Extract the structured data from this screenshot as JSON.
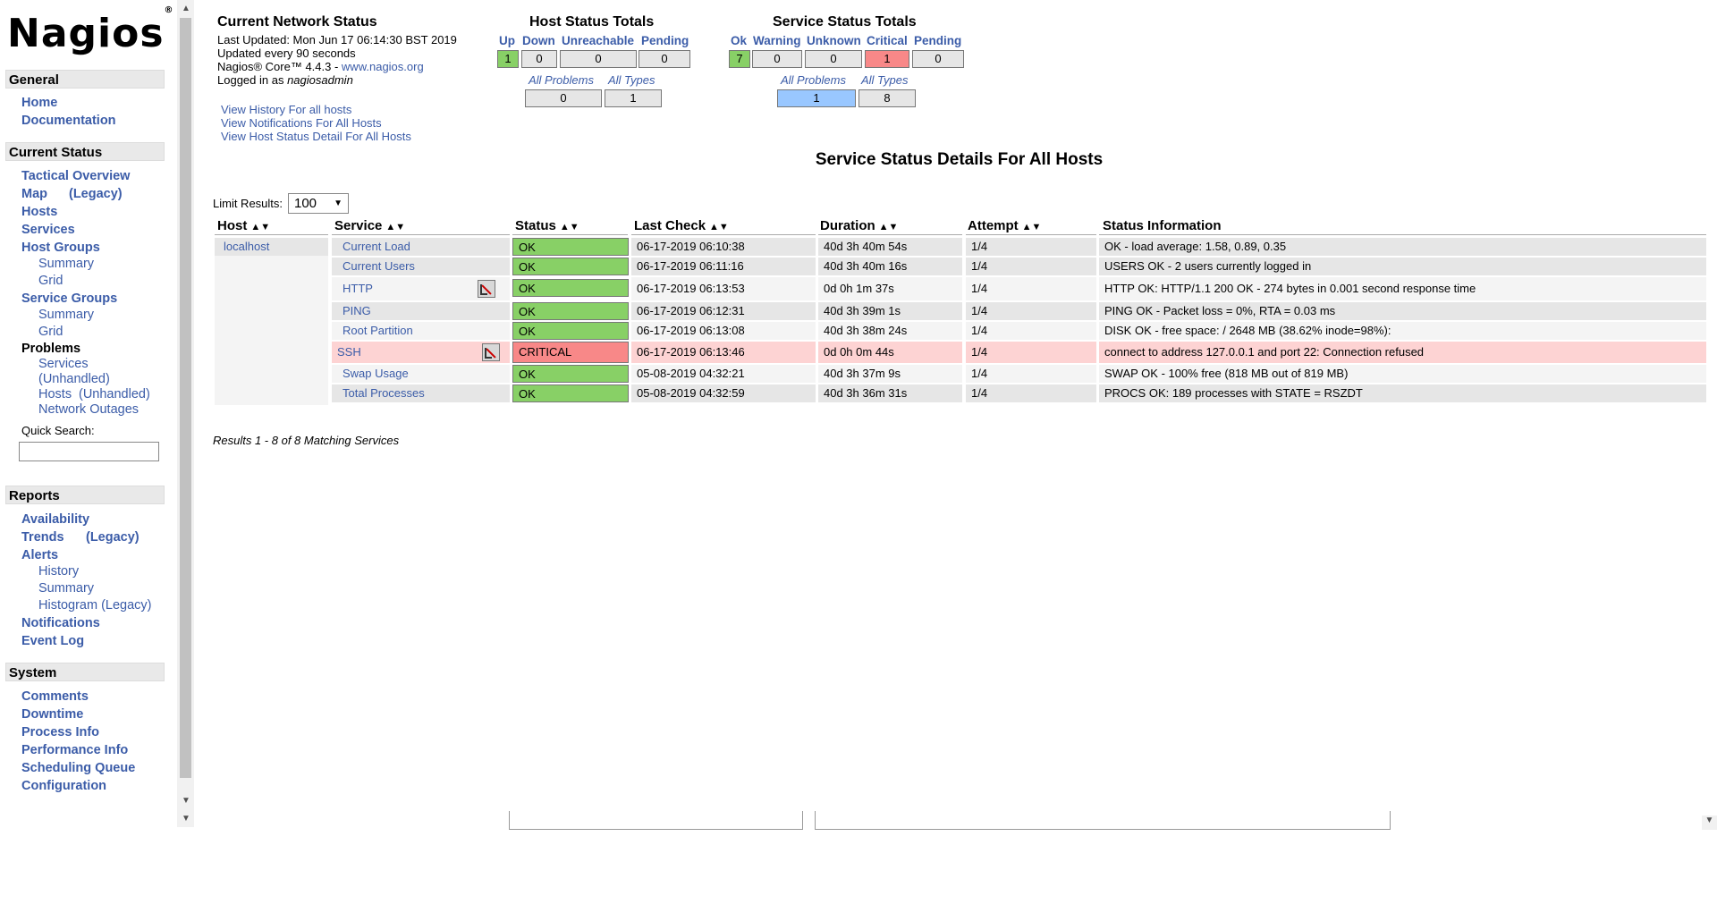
{
  "logo": {
    "text": "Nagios",
    "mark": "®"
  },
  "nav": {
    "general": {
      "title": "General",
      "items": [
        "Home",
        "Documentation"
      ]
    },
    "current_status": {
      "title": "Current Status",
      "tactical": "Tactical Overview",
      "map": "Map",
      "map_legacy": "(Legacy)",
      "hosts": "Hosts",
      "services": "Services",
      "host_groups": "Host Groups",
      "hg_summary": "Summary",
      "hg_grid": "Grid",
      "service_groups": "Service Groups",
      "sg_summary": "Summary",
      "sg_grid": "Grid",
      "problems": "Problems",
      "p_services": "Services",
      "p_services_unhandled": "(Unhandled)",
      "p_hosts": "Hosts",
      "p_hosts_unhandled": "(Unhandled)",
      "p_network_outages": "Network Outages",
      "quick_search": "Quick Search:"
    },
    "reports": {
      "title": "Reports",
      "availability": "Availability",
      "trends": "Trends",
      "trends_legacy": "(Legacy)",
      "alerts": "Alerts",
      "history": "History",
      "summary": "Summary",
      "histogram": "Histogram (Legacy)",
      "notifications": "Notifications",
      "event_log": "Event Log"
    },
    "system": {
      "title": "System",
      "items": [
        "Comments",
        "Downtime",
        "Process Info",
        "Performance Info",
        "Scheduling Queue",
        "Configuration"
      ]
    }
  },
  "status_info": {
    "title": "Current Network Status",
    "updated": "Last Updated: Mon Jun 17 06:14:30 BST 2019",
    "interval": "Updated every 90 seconds",
    "core_prefix": "Nagios® Core™ 4.4.3 - ",
    "core_link": "www.nagios.org",
    "logged_prefix": "Logged in as ",
    "user": "nagiosadmin",
    "links": [
      "View History For all hosts",
      "View Notifications For All Hosts",
      "View Host Status Detail For All Hosts"
    ]
  },
  "host_totals": {
    "title": "Host Status Totals",
    "headers": [
      "Up",
      "Down",
      "Unreachable",
      "Pending"
    ],
    "values": [
      "1",
      "0",
      "0",
      "0"
    ],
    "sub_headers": [
      "All Problems",
      "All Types"
    ],
    "sub_values": [
      "0",
      "1"
    ]
  },
  "service_totals": {
    "title": "Service Status Totals",
    "headers": [
      "Ok",
      "Warning",
      "Unknown",
      "Critical",
      "Pending"
    ],
    "values": [
      "7",
      "0",
      "0",
      "1",
      "0"
    ],
    "sub_headers": [
      "All Problems",
      "All Types"
    ],
    "sub_values": [
      "1",
      "8"
    ]
  },
  "details": {
    "title": "Service Status Details For All Hosts",
    "limit_label": "Limit Results:",
    "limit_value": "100",
    "columns": [
      "Host",
      "Service",
      "Status",
      "Last Check",
      "Duration",
      "Attempt",
      "Status Information"
    ],
    "host": "localhost",
    "rows": [
      {
        "service": "Current Load",
        "status": "OK",
        "last_check": "06-17-2019 06:10:38",
        "duration": "40d 3h 40m 54s",
        "attempt": "1/4",
        "info": "OK - load average: 1.58, 0.89, 0.35"
      },
      {
        "service": "Current Users",
        "status": "OK",
        "last_check": "06-17-2019 06:11:16",
        "duration": "40d 3h 40m 16s",
        "attempt": "1/4",
        "info": "USERS OK - 2 users currently logged in"
      },
      {
        "service": "HTTP",
        "status": "OK",
        "last_check": "06-17-2019 06:13:53",
        "duration": "0d 0h 1m 37s",
        "attempt": "1/4",
        "info": "HTTP OK: HTTP/1.1 200 OK - 274 bytes in 0.001 second response time"
      },
      {
        "service": "PING",
        "status": "OK",
        "last_check": "06-17-2019 06:12:31",
        "duration": "40d 3h 39m 1s",
        "attempt": "1/4",
        "info": "PING OK - Packet loss = 0%, RTA = 0.03 ms"
      },
      {
        "service": "Root Partition",
        "status": "OK",
        "last_check": "06-17-2019 06:13:08",
        "duration": "40d 3h 38m 24s",
        "attempt": "1/4",
        "info": "DISK OK - free space: / 2648 MB (38.62% inode=98%):"
      },
      {
        "service": "SSH",
        "status": "CRITICAL",
        "last_check": "06-17-2019 06:13:46",
        "duration": "0d 0h 0m 44s",
        "attempt": "1/4",
        "info": "connect to address 127.0.0.1 and port 22: Connection refused"
      },
      {
        "service": "Swap Usage",
        "status": "OK",
        "last_check": "05-08-2019 04:32:21",
        "duration": "40d 3h 37m 9s",
        "attempt": "1/4",
        "info": "SWAP OK - 100% free (818 MB out of 819 MB)"
      },
      {
        "service": "Total Processes",
        "status": "OK",
        "last_check": "05-08-2019 04:32:59",
        "duration": "40d 3h 36m 31s",
        "attempt": "1/4",
        "info": "PROCS OK: 189 processes with STATE = RSZDT"
      }
    ],
    "results": "Results 1 - 8 of 8 Matching Services"
  },
  "colors": {
    "ok": "#88d066",
    "critical": "#f88888",
    "link": "#3b5ca8",
    "selected": "#99c7ff"
  }
}
